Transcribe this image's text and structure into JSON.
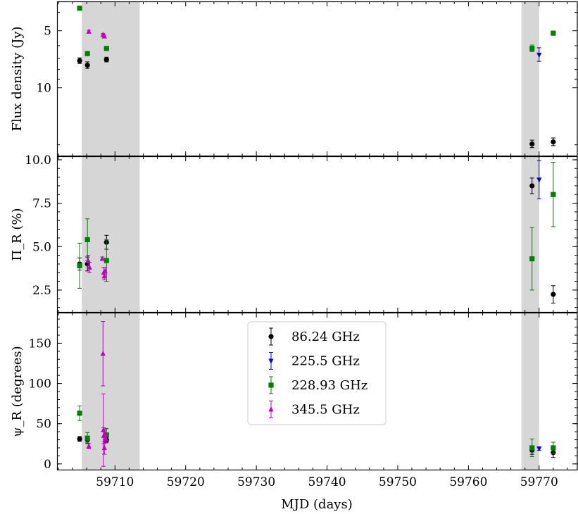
{
  "chart_data": {
    "type": "scatter",
    "x": {
      "label": "MJD (days)",
      "lim": [
        59701.8,
        59775.5
      ],
      "ticks": [
        59710,
        59720,
        59730,
        59740,
        59750,
        59760,
        59770
      ],
      "tick_labels": [
        "59710",
        "59720",
        "59730",
        "59740",
        "59750",
        "59760",
        "59770"
      ]
    },
    "shaded_regions": [
      [
        59705.3,
        59713.5
      ],
      [
        59767.5,
        59770.0
      ]
    ],
    "legend": {
      "panel": 2,
      "placement": "upper-center",
      "entries": [
        {
          "series": "s86",
          "label": "86.24 GHz"
        },
        {
          "series": "s225",
          "label": "225.5 GHz"
        },
        {
          "series": "s229",
          "label": "228.93 GHz"
        },
        {
          "series": "s345",
          "label": "345.5 GHz"
        }
      ]
    },
    "series_styles": {
      "s86": {
        "color": "#000000",
        "marker": "circle"
      },
      "s225": {
        "color": "#0000dd",
        "marker": "triangle-down"
      },
      "s229": {
        "color": "#008000",
        "marker": "square"
      },
      "s345": {
        "color": "#bf00bf",
        "marker": "triangle-up"
      }
    },
    "panels": [
      {
        "ylabel": "Flux density (Jy)",
        "yscale": "log",
        "inverted": true,
        "ylim": [
          3.5,
          23
        ],
        "yticks": [
          5,
          10
        ],
        "ytick_labels": [
          "5",
          "10"
        ],
        "minor_yticks": [
          4,
          6,
          7,
          8,
          9,
          20
        ],
        "points": {
          "s86": [
            [
              59705.0,
              7.2,
              0.25
            ],
            [
              59706.1,
              7.6,
              0.3
            ],
            [
              59708.8,
              7.1,
              0.2
            ],
            [
              59769.0,
              19.8,
              0.9
            ],
            [
              59772.0,
              19.3,
              0.9
            ]
          ],
          "s225": [
            [
              59770.0,
              6.7,
              0.55
            ]
          ],
          "s229": [
            [
              59705.0,
              3.8,
              0.05
            ],
            [
              59706.1,
              6.6,
              0.15
            ],
            [
              59708.8,
              6.2,
              0.15
            ],
            [
              59769.0,
              6.2,
              0.25
            ],
            [
              59772.0,
              5.15,
              0.12
            ]
          ],
          "s345": [
            [
              59706.3,
              5.05,
              0.08
            ],
            [
              59708.3,
              5.25,
              0.08
            ],
            [
              59708.5,
              5.35,
              0.08
            ]
          ]
        }
      },
      {
        "ylabel": "Π_R (%)",
        "yscale": "linear",
        "ylim": [
          1.2,
          10.2
        ],
        "yticks": [
          2.5,
          5.0,
          7.5,
          10.0
        ],
        "ytick_labels": [
          "2.5",
          "5.0",
          "7.5",
          "10.0"
        ],
        "points": {
          "s86": [
            [
              59705.0,
              4.0,
              0.35
            ],
            [
              59706.1,
              4.0,
              0.4
            ],
            [
              59708.8,
              5.25,
              0.4
            ],
            [
              59769.0,
              8.5,
              0.45
            ],
            [
              59772.0,
              2.25,
              0.5
            ]
          ],
          "s225": [
            [
              59770.0,
              8.85,
              1.1
            ]
          ],
          "s229": [
            [
              59705.0,
              3.9,
              1.3
            ],
            [
              59706.1,
              5.4,
              1.2
            ],
            [
              59708.8,
              4.2,
              1.2
            ],
            [
              59769.0,
              4.3,
              1.8
            ],
            [
              59772.0,
              8.0,
              1.85
            ]
          ],
          "s345": [
            [
              59706.2,
              4.2,
              0.3
            ],
            [
              59706.4,
              3.8,
              0.3
            ],
            [
              59708.2,
              4.3,
              0.1
            ],
            [
              59708.4,
              3.5,
              0.3
            ],
            [
              59708.5,
              3.3,
              0.2
            ],
            [
              59708.6,
              3.6,
              0.2
            ]
          ]
        }
      },
      {
        "ylabel": "ψ_R (degrees)",
        "yscale": "linear",
        "ylim": [
          -8,
          188
        ],
        "yticks": [
          0,
          50,
          100,
          150
        ],
        "ytick_labels": [
          "0",
          "50",
          "100",
          "150"
        ],
        "points": {
          "s86": [
            [
              59705.0,
              31,
              3
            ],
            [
              59706.1,
              30,
              4
            ],
            [
              59708.8,
              30,
              3
            ],
            [
              59769.0,
              17,
              5
            ],
            [
              59772.0,
              14,
              6
            ]
          ],
          "s225": [
            [
              59770.0,
              19,
              2
            ]
          ],
          "s229": [
            [
              59705.0,
              63,
              9
            ],
            [
              59706.1,
              32,
              7
            ],
            [
              59708.8,
              36,
              8
            ],
            [
              59769.0,
              20,
              11
            ],
            [
              59772.0,
              20,
              7
            ]
          ],
          "s345": [
            [
              59706.3,
              22,
              3
            ],
            [
              59708.3,
              137,
              40
            ],
            [
              59708.35,
              42,
              45
            ],
            [
              59708.4,
              35,
              10
            ],
            [
              59708.5,
              20,
              8
            ],
            [
              59708.6,
              38,
              5
            ],
            [
              59708.7,
              31,
              5
            ]
          ]
        }
      }
    ]
  }
}
